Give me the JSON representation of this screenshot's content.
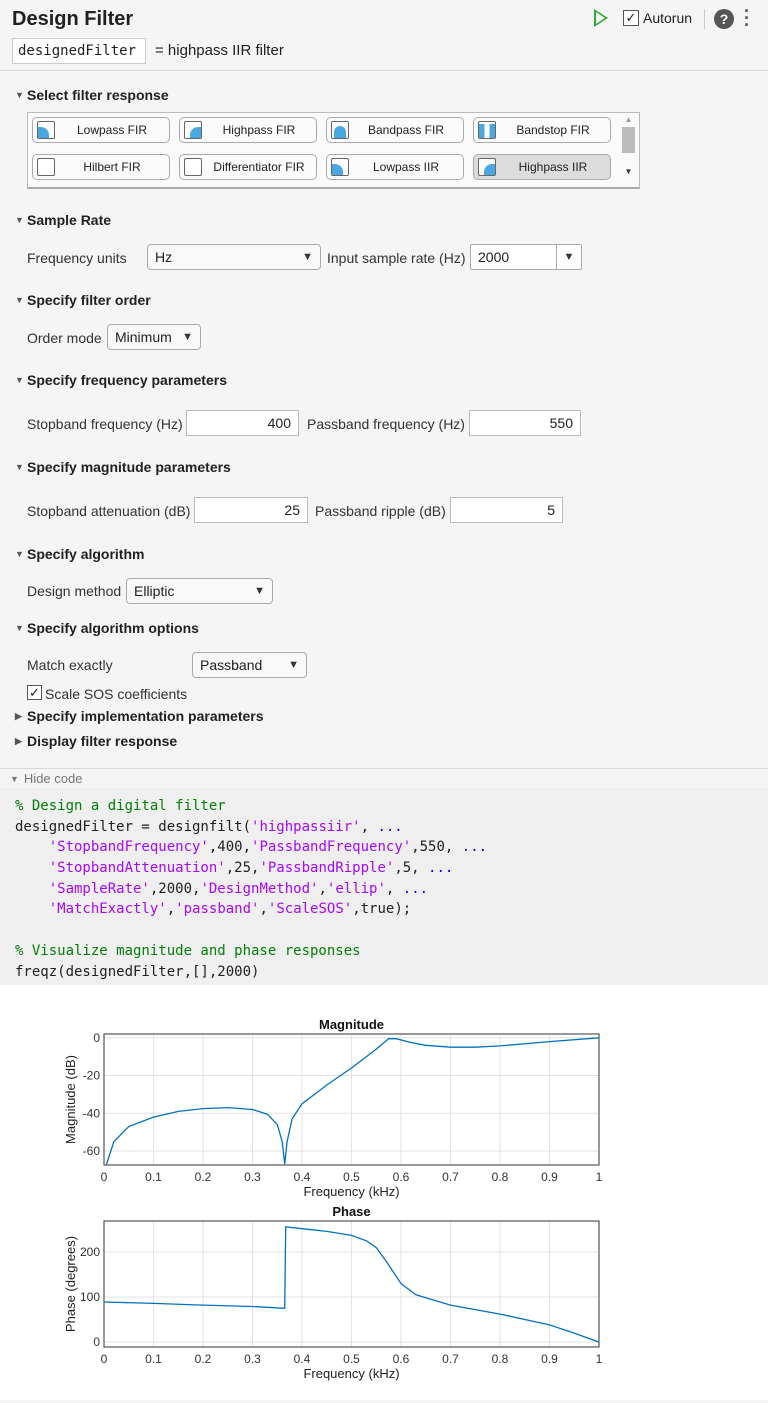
{
  "header": {
    "title": "Design Filter",
    "output_var": "designedFilter",
    "output_desc": "=  highpass IIR filter",
    "autorun_label": "Autorun",
    "autorun_checked": true
  },
  "sections": {
    "filter_response": "Select filter response",
    "sample_rate": "Sample Rate",
    "filter_order": "Specify filter order",
    "freq_params": "Specify frequency parameters",
    "mag_params": "Specify magnitude parameters",
    "algorithm": "Specify algorithm",
    "algo_options": "Specify algorithm options",
    "implementation": "Specify implementation parameters",
    "display": "Display filter response"
  },
  "filters": [
    {
      "label": "Lowpass FIR",
      "selected": false
    },
    {
      "label": "Highpass FIR",
      "selected": false
    },
    {
      "label": "Bandpass FIR",
      "selected": false
    },
    {
      "label": "Bandstop FIR",
      "selected": false
    },
    {
      "label": "Hilbert FIR",
      "selected": false
    },
    {
      "label": "Differentiator FIR",
      "selected": false
    },
    {
      "label": "Lowpass IIR",
      "selected": false
    },
    {
      "label": "Highpass IIR",
      "selected": true
    }
  ],
  "fields": {
    "freq_units_label": "Frequency units",
    "freq_units": "Hz",
    "input_rate_label": "Input sample rate (Hz)",
    "input_rate": "2000",
    "order_mode_label": "Order mode",
    "order_mode": "Minimum",
    "stop_freq_label": "Stopband frequency (Hz)",
    "stop_freq": "400",
    "pass_freq_label": "Passband frequency (Hz)",
    "pass_freq": "550",
    "stop_att_label": "Stopband attenuation (dB)",
    "stop_att": "25",
    "pass_ripple_label": "Passband ripple (dB)",
    "pass_ripple": "5",
    "design_method_label": "Design method",
    "design_method": "Elliptic",
    "match_label": "Match exactly",
    "match": "Passband",
    "scale_sos_label": "Scale SOS coefficients",
    "scale_sos": true
  },
  "code": {
    "toggle_label": "Hide code",
    "lines": [
      [
        [
          "comment",
          "% Design a digital filter"
        ]
      ],
      [
        [
          "plain",
          "designedFilter = designfilt("
        ],
        [
          "str",
          "'highpassiir'"
        ],
        [
          "plain",
          ", "
        ],
        [
          "cont",
          "..."
        ]
      ],
      [
        [
          "plain",
          "    "
        ],
        [
          "str",
          "'StopbandFrequency'"
        ],
        [
          "plain",
          ",400,"
        ],
        [
          "str",
          "'PassbandFrequency'"
        ],
        [
          "plain",
          ",550, "
        ],
        [
          "cont",
          "..."
        ]
      ],
      [
        [
          "plain",
          "    "
        ],
        [
          "str",
          "'StopbandAttenuation'"
        ],
        [
          "plain",
          ",25,"
        ],
        [
          "str",
          "'PassbandRipple'"
        ],
        [
          "plain",
          ",5, "
        ],
        [
          "cont",
          "..."
        ]
      ],
      [
        [
          "plain",
          "    "
        ],
        [
          "str",
          "'SampleRate'"
        ],
        [
          "plain",
          ",2000,"
        ],
        [
          "str",
          "'DesignMethod'"
        ],
        [
          "plain",
          ","
        ],
        [
          "str",
          "'ellip'"
        ],
        [
          "plain",
          ", "
        ],
        [
          "cont",
          "..."
        ]
      ],
      [
        [
          "plain",
          "    "
        ],
        [
          "str",
          "'MatchExactly'"
        ],
        [
          "plain",
          ","
        ],
        [
          "str",
          "'passband'"
        ],
        [
          "plain",
          ","
        ],
        [
          "str",
          "'ScaleSOS'"
        ],
        [
          "plain",
          ",true);"
        ]
      ],
      [],
      [
        [
          "comment",
          "% Visualize magnitude and phase responses"
        ]
      ],
      [
        [
          "plain",
          "freqz(designedFilter,[],2000)"
        ]
      ]
    ]
  },
  "colors": {
    "line": "#0072bd",
    "run": "#2fa82f",
    "icon_fill": "#4aa8e0"
  },
  "chart_data": [
    {
      "type": "line",
      "title": "Magnitude",
      "xlabel": "Frequency (kHz)",
      "ylabel": "Magnitude (dB)",
      "xlim": [
        0,
        1
      ],
      "ylim": [
        -67.4,
        2
      ],
      "xticks": [
        "0",
        "0.1",
        "0.2",
        "0.3",
        "0.4",
        "0.5",
        "0.6",
        "0.7",
        "0.8",
        "0.9",
        "1"
      ],
      "yticks": [
        "0",
        "-20",
        "-40",
        "-60"
      ],
      "grid": true,
      "x": [
        0.005,
        0.02,
        0.05,
        0.1,
        0.15,
        0.2,
        0.25,
        0.3,
        0.33,
        0.35,
        0.36,
        0.365,
        0.37,
        0.38,
        0.4,
        0.45,
        0.5,
        0.55,
        0.575,
        0.59,
        0.62,
        0.65,
        0.7,
        0.75,
        0.8,
        0.9,
        1.0
      ],
      "y": [
        -67,
        -55,
        -47,
        -42,
        -39,
        -37.5,
        -37,
        -38,
        -40.5,
        -46,
        -55,
        -67,
        -55,
        -43,
        -35,
        -25,
        -16,
        -6,
        -0.5,
        -0.5,
        -2.5,
        -4,
        -5,
        -5,
        -4.3,
        -2,
        0
      ]
    },
    {
      "type": "line",
      "title": "Phase",
      "xlabel": "Frequency (kHz)",
      "ylabel": "Phase (degrees)",
      "xlim": [
        0,
        1
      ],
      "ylim": [
        -11,
        269
      ],
      "xticks": [
        "0",
        "0.1",
        "0.2",
        "0.3",
        "0.4",
        "0.5",
        "0.6",
        "0.7",
        "0.8",
        "0.9",
        "1"
      ],
      "yticks": [
        "0",
        "100",
        "200"
      ],
      "grid": true,
      "x": [
        0,
        0.1,
        0.2,
        0.3,
        0.365,
        0.367,
        0.4,
        0.45,
        0.5,
        0.53,
        0.55,
        0.57,
        0.6,
        0.63,
        0.7,
        0.8,
        0.9,
        0.95,
        1.0
      ],
      "y": [
        89,
        86,
        82,
        79,
        75,
        256,
        252,
        246,
        237,
        225,
        210,
        180,
        130,
        105,
        82,
        62,
        38,
        20,
        0
      ]
    }
  ]
}
